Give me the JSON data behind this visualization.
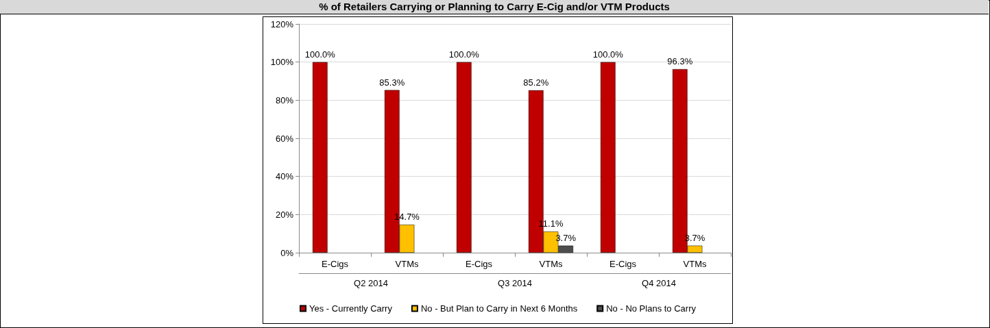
{
  "chart_data": {
    "type": "bar",
    "title": "% of Retailers Carrying or Planning to Carry E-Cig and/or VTM Products",
    "categories": [
      "E-Cigs",
      "VTMs",
      "E-Cigs",
      "VTMs",
      "E-Cigs",
      "VTMs"
    ],
    "annotations": [
      "Q2 2014",
      "Q3 2014",
      "Q4 2014"
    ],
    "series": [
      {
        "name": "Yes - Currently Carry",
        "color": "#c00000",
        "values": [
          100,
          85.3,
          100,
          85.2,
          100,
          96.3
        ],
        "value_labels": [
          "100.0%",
          "85.3%",
          "100.0%",
          "85.2%",
          "100.0%",
          "96.3%"
        ]
      },
      {
        "name": "No - But Plan to Carry in Next 6 Months",
        "color": "#ffc000",
        "values": [
          null,
          14.7,
          null,
          11.1,
          null,
          3.7
        ],
        "value_labels": [
          null,
          "14.7%",
          null,
          "11.1%",
          null,
          "3.7%"
        ]
      },
      {
        "name": "No - No Plans to Carry",
        "color": "#4d4d4d",
        "values": [
          null,
          null,
          null,
          3.7,
          null,
          null
        ],
        "value_labels": [
          null,
          null,
          null,
          "3.7%",
          null,
          null
        ]
      }
    ],
    "ylim": [
      0,
      120
    ],
    "yticks": [
      {
        "value": 0,
        "label": "0%"
      },
      {
        "value": 20,
        "label": "20%"
      },
      {
        "value": 40,
        "label": "40%"
      },
      {
        "value": 60,
        "label": "60%"
      },
      {
        "value": 80,
        "label": "80%"
      },
      {
        "value": 100,
        "label": "100%"
      },
      {
        "value": 120,
        "label": "120%"
      }
    ],
    "grid": "y",
    "legend": "bottom"
  }
}
